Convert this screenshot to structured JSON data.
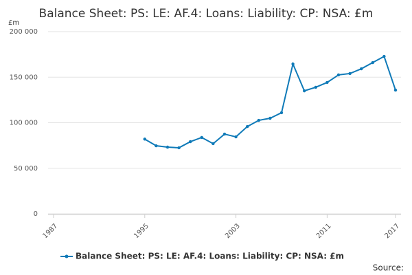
{
  "chart_data": {
    "type": "line",
    "title": "Balance Sheet: PS: LE: AF.4: Loans: Liability: CP: NSA: £m",
    "y_unit": "£m",
    "source": "Source:",
    "x": [
      1995,
      1996,
      1997,
      1998,
      1999,
      2000,
      2001,
      2002,
      2003,
      2004,
      2005,
      2006,
      2007,
      2008,
      2009,
      2010,
      2011,
      2012,
      2013,
      2014,
      2015,
      2016,
      2017
    ],
    "series": [
      {
        "name": "Balance Sheet: PS: LE: AF.4: Loans: Liability: CP: NSA: £m",
        "color": "#0f7ab8",
        "values": [
          82000,
          74700,
          73200,
          72500,
          79200,
          83800,
          77000,
          87500,
          84500,
          95800,
          102600,
          104900,
          111000,
          164500,
          135000,
          138900,
          144200,
          152500,
          154000,
          159200,
          166000,
          172800,
          135800
        ]
      }
    ],
    "xlim": [
      1987,
      2017
    ],
    "xticks": [
      1987,
      1995,
      2003,
      2011,
      2017
    ],
    "ylim": [
      0,
      200000
    ],
    "yticks": [
      0,
      {
        "value": 50000,
        "label": "50 000"
      },
      {
        "value": 100000,
        "label": "100 000"
      },
      {
        "value": 150000,
        "label": "150 000"
      },
      {
        "value": 200000,
        "label": "200 000"
      }
    ],
    "grid": true
  }
}
